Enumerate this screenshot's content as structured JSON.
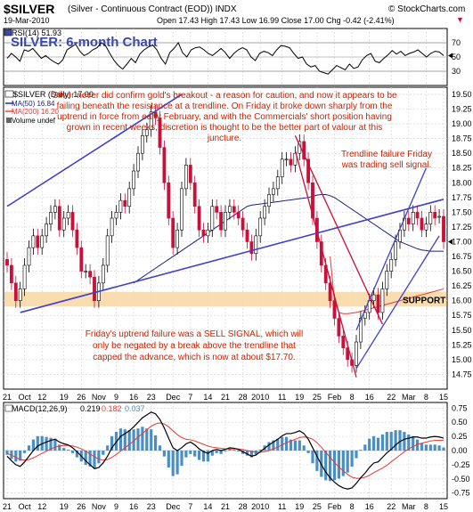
{
  "header": {
    "symbol": "$SILVER",
    "description": "(Silver - Continuous Contract (EOD)) INDX",
    "watermark": "© StockCharts.com",
    "date": "19-Mar-2010",
    "ohlc": "Open 17.43  High 17.43  Low 16.99  Close 17.00  Chg -0.42 (-2.41%)",
    "chg_arrow": "▼"
  },
  "colors": {
    "price_up": "#000000",
    "price_down": "#c8103a",
    "ma50": "#1a237e",
    "ma200": "#e53935",
    "trendline": "#3f3fcc",
    "support_band": "#f8d9a8",
    "annotation": "#cc2200",
    "title": "#3949ab",
    "macd_line": "#000000",
    "macd_signal": "#e53935",
    "macd_hist": "#4a8fc4",
    "grid": "#cfcfcf"
  },
  "chart_data": [
    {
      "type": "line",
      "panel": "RSI",
      "title": "SILVER: 6-month Chart",
      "legend": "RSI(14) 51.93",
      "yticks": [
        70,
        50,
        30
      ],
      "ylim": [
        10,
        90
      ],
      "last_value": 51.93,
      "series": [
        {
          "name": "RSI(14)",
          "values": [
            48,
            55,
            50,
            44,
            60,
            58,
            62,
            55,
            48,
            52,
            47,
            43,
            40,
            46,
            60,
            64,
            68,
            58,
            52,
            55,
            60,
            63,
            70,
            66,
            55,
            45,
            38,
            33,
            40,
            48,
            42,
            54,
            60,
            64,
            67,
            60,
            48,
            40,
            56,
            62,
            70,
            56,
            50,
            60,
            63,
            64,
            60,
            55,
            52,
            57,
            62,
            56,
            48,
            55,
            60,
            63,
            60,
            50,
            45,
            55,
            58,
            56,
            52,
            60,
            66,
            65,
            63,
            55,
            48,
            50,
            40,
            36,
            38,
            30,
            28,
            26,
            32,
            38,
            35,
            32,
            40,
            34,
            36,
            46,
            52,
            55,
            44,
            42,
            48,
            53,
            59,
            54,
            58,
            52,
            55,
            57,
            60,
            55,
            50,
            55,
            58,
            57,
            52
          ]
        }
      ]
    },
    {
      "type": "candlestick",
      "panel": "price",
      "legend": [
        "$SILVER (Daily) 17.00",
        "MA(50) 16.84",
        "MA(200) 16.20",
        "Volume undef"
      ],
      "x_tick_labels": [
        "21",
        "Oct",
        "12",
        "19",
        "26",
        "Nov",
        "9",
        "16",
        "23",
        "Dec",
        "7",
        "14",
        "21",
        "28",
        "2010",
        "11",
        "19",
        "25",
        "Feb",
        "8",
        "16",
        "22",
        "Mar",
        "8",
        "15"
      ],
      "y_tick_labels": [
        "14.75",
        "15.00",
        "15.25",
        "15.50",
        "15.75",
        "16.00",
        "16.25",
        "16.50",
        "16.75",
        "17.00",
        "17.25",
        "17.50",
        "17.75",
        "18.00",
        "18.25",
        "18.50",
        "18.75",
        "19.00",
        "19.25",
        "19.50"
      ],
      "ylim": [
        14.5,
        19.62
      ],
      "close": [
        16.6,
        16.3,
        16.0,
        16.2,
        16.6,
        16.9,
        17.1,
        16.9,
        17.1,
        17.3,
        17.5,
        17.6,
        17.2,
        17.4,
        17.5,
        17.2,
        16.9,
        16.5,
        16.5,
        16.4,
        16.0,
        16.3,
        16.6,
        17.1,
        17.4,
        17.5,
        17.7,
        17.6,
        17.9,
        18.2,
        18.5,
        18.8,
        18.9,
        19.2,
        19.1,
        18.6,
        18.0,
        17.4,
        16.9,
        17.2,
        17.9,
        18.3,
        18.0,
        17.6,
        17.2,
        17.1,
        17.2,
        17.6,
        17.5,
        17.2,
        17.5,
        17.6,
        17.5,
        17.4,
        17.2,
        17.0,
        16.8,
        17.1,
        17.4,
        17.6,
        17.8,
        17.9,
        18.1,
        18.4,
        18.4,
        18.3,
        18.5,
        18.7,
        18.4,
        18.0,
        17.4,
        17.0,
        16.6,
        16.3,
        16.0,
        15.7,
        15.4,
        15.2,
        15.0,
        14.9,
        15.3,
        15.7,
        15.8,
        16.0,
        16.1,
        15.8,
        16.2,
        16.5,
        16.7,
        17.0,
        17.2,
        17.4,
        17.3,
        17.5,
        17.4,
        17.2,
        17.3,
        17.5,
        17.4,
        17.43,
        17.0
      ],
      "open": [
        16.7,
        16.6,
        16.3,
        16.0,
        16.2,
        16.6,
        16.9,
        17.1,
        16.9,
        17.1,
        17.3,
        17.5,
        17.6,
        17.2,
        17.4,
        17.5,
        17.2,
        16.9,
        16.5,
        16.5,
        16.4,
        16.0,
        16.3,
        16.6,
        17.1,
        17.4,
        17.5,
        17.7,
        17.6,
        17.9,
        18.2,
        18.5,
        18.8,
        18.9,
        19.2,
        19.1,
        18.6,
        18.0,
        17.4,
        16.9,
        17.2,
        17.9,
        18.3,
        18.0,
        17.6,
        17.2,
        17.1,
        17.2,
        17.6,
        17.5,
        17.2,
        17.5,
        17.6,
        17.5,
        17.4,
        17.2,
        17.0,
        16.8,
        17.1,
        17.4,
        17.6,
        17.8,
        17.9,
        18.1,
        18.4,
        18.4,
        18.3,
        18.5,
        18.7,
        18.4,
        18.0,
        17.4,
        17.0,
        16.6,
        16.3,
        16.0,
        15.7,
        15.4,
        15.2,
        15.0,
        14.9,
        15.3,
        15.7,
        15.8,
        16.0,
        16.1,
        15.8,
        16.2,
        16.5,
        16.7,
        17.0,
        17.2,
        17.4,
        17.3,
        17.5,
        17.4,
        17.2,
        17.3,
        17.5,
        17.43,
        17.43
      ],
      "ma50": [
        16.3,
        16.35,
        16.4,
        16.45,
        16.5,
        16.55,
        16.6,
        16.65,
        16.7,
        16.75,
        16.8,
        16.85,
        16.9,
        16.95,
        17.0,
        17.05,
        17.1,
        17.15,
        17.2,
        17.25,
        17.3,
        17.35,
        17.4,
        17.45,
        17.5,
        17.55,
        17.6,
        17.62,
        17.63,
        17.64,
        17.65,
        17.66,
        17.67,
        17.68,
        17.69,
        17.7,
        17.71,
        17.72,
        17.73,
        17.74,
        17.75,
        17.77,
        17.79,
        17.8,
        17.8,
        17.78,
        17.75,
        17.7,
        17.65,
        17.6,
        17.55,
        17.5,
        17.45,
        17.4,
        17.35,
        17.3,
        17.25,
        17.2,
        17.15,
        17.1,
        17.05,
        17.0,
        16.97,
        16.94,
        16.91,
        16.88,
        16.86,
        16.85,
        16.84,
        16.84,
        16.84,
        16.84
      ],
      "ma200": [
        16.75,
        16.0,
        15.8,
        15.78,
        15.78,
        15.79,
        15.8,
        15.82,
        15.84,
        15.86,
        15.88,
        15.9,
        15.92,
        15.94,
        15.96,
        15.98,
        16.0,
        16.02,
        16.04,
        16.06,
        16.08,
        16.1,
        16.12,
        16.14,
        16.16,
        16.18,
        16.2
      ],
      "support_band": [
        15.9,
        16.15
      ],
      "trendlines": [
        {
          "name": "upper-channel-line",
          "from": [
            0,
            17.6
          ],
          "to": [
            40,
            19.5
          ]
        },
        {
          "name": "lower-channel-line",
          "from": [
            3,
            15.8
          ],
          "to": [
            100,
            17.72
          ]
        },
        {
          "name": "downtrend-line-upper",
          "from": [
            66,
            18.8
          ],
          "to": [
            86,
            15.6
          ]
        },
        {
          "name": "downtrend-line-lower",
          "from": [
            66,
            18.55
          ],
          "to": [
            80,
            14.7
          ]
        },
        {
          "name": "uptrend-line-upper",
          "from": [
            80,
            15.5
          ],
          "to": [
            96,
            18.25
          ]
        },
        {
          "name": "uptrend-line-lower",
          "from": [
            80,
            14.85
          ],
          "to": [
            99,
            17.1
          ]
        }
      ],
      "annotations": {
        "main_text": "Silver never did confirm gold's breakout - a reason for caution, and now it appears to be failing beneath the resistance at a trendline. On Friday it broke down sharply from the uptrend in force from early February, and with the Commercials' short position having grown in recent weeks, discretion is thought to be the better part of valour at this juncture.",
        "trendline_failure": "Trendline failure Friday was trading sell signal.",
        "support": "SUPPORT",
        "sell_signal": "Friday's uptrend failure was a SELL SIGNAL, which will only be negated by a break above the  trendline that capped the advance, which is now at about $17.70."
      }
    },
    {
      "type": "line",
      "panel": "MACD",
      "legend": [
        "MACD(12,26,9)",
        "0.219",
        "0.182",
        "0.037"
      ],
      "y_tick_labels": [
        "0.75",
        "0.50",
        "0.25",
        "0.00",
        "-0.25",
        "-0.50",
        "-0.75"
      ],
      "ylim": [
        -0.85,
        0.85
      ],
      "series": [
        {
          "name": "MACD(12,26,9)",
          "values": [
            -0.1,
            -0.18,
            -0.25,
            -0.28,
            -0.2,
            -0.1,
            0.0,
            0.08,
            0.12,
            0.15,
            0.18,
            0.2,
            0.15,
            0.12,
            0.1,
            0.05,
            -0.02,
            -0.1,
            -0.18,
            -0.25,
            -0.32,
            -0.3,
            -0.22,
            -0.1,
            0.05,
            0.15,
            0.25,
            0.3,
            0.35,
            0.42,
            0.5,
            0.58,
            0.63,
            0.68,
            0.65,
            0.55,
            0.4,
            0.22,
            0.05,
            0.0,
            0.05,
            0.12,
            0.15,
            0.1,
            0.03,
            -0.02,
            -0.05,
            0.0,
            0.02,
            0.0,
            0.02,
            0.05,
            0.04,
            0.02,
            -0.02,
            -0.06,
            -0.1,
            -0.08,
            -0.02,
            0.04,
            0.1,
            0.15,
            0.2,
            0.26,
            0.3,
            0.3,
            0.32,
            0.35,
            0.3,
            0.2,
            0.05,
            -0.1,
            -0.25,
            -0.38,
            -0.48,
            -0.56,
            -0.62,
            -0.66,
            -0.68,
            -0.66,
            -0.58,
            -0.48,
            -0.4,
            -0.3,
            -0.22,
            -0.2,
            -0.12,
            -0.04,
            0.02,
            0.1,
            0.16,
            0.2,
            0.22,
            0.24,
            0.24,
            0.22,
            0.22,
            0.24,
            0.25,
            0.24,
            0.219
          ]
        },
        {
          "name": "signal",
          "values": [
            -0.05,
            -0.08,
            -0.12,
            -0.16,
            -0.17,
            -0.16,
            -0.13,
            -0.09,
            -0.05,
            -0.01,
            0.03,
            0.06,
            0.08,
            0.09,
            0.09,
            0.08,
            0.06,
            0.03,
            -0.01,
            -0.06,
            -0.11,
            -0.15,
            -0.17,
            -0.16,
            -0.12,
            -0.07,
            -0.01,
            0.05,
            0.11,
            0.17,
            0.24,
            0.3,
            0.37,
            0.43,
            0.47,
            0.49,
            0.47,
            0.42,
            0.35,
            0.28,
            0.23,
            0.2,
            0.19,
            0.17,
            0.14,
            0.11,
            0.08,
            0.06,
            0.05,
            0.04,
            0.03,
            0.03,
            0.03,
            0.03,
            0.02,
            0.0,
            -0.02,
            -0.03,
            -0.03,
            -0.02,
            0.0,
            0.03,
            0.06,
            0.1,
            0.14,
            0.17,
            0.2,
            0.23,
            0.24,
            0.23,
            0.2,
            0.14,
            0.06,
            -0.03,
            -0.12,
            -0.21,
            -0.29,
            -0.36,
            -0.42,
            -0.47,
            -0.49,
            -0.49,
            -0.47,
            -0.44,
            -0.39,
            -0.35,
            -0.31,
            -0.26,
            -0.2,
            -0.14,
            -0.08,
            -0.02,
            0.03,
            0.07,
            0.11,
            0.13,
            0.15,
            0.17,
            0.18,
            0.18,
            0.182
          ]
        }
      ]
    }
  ]
}
